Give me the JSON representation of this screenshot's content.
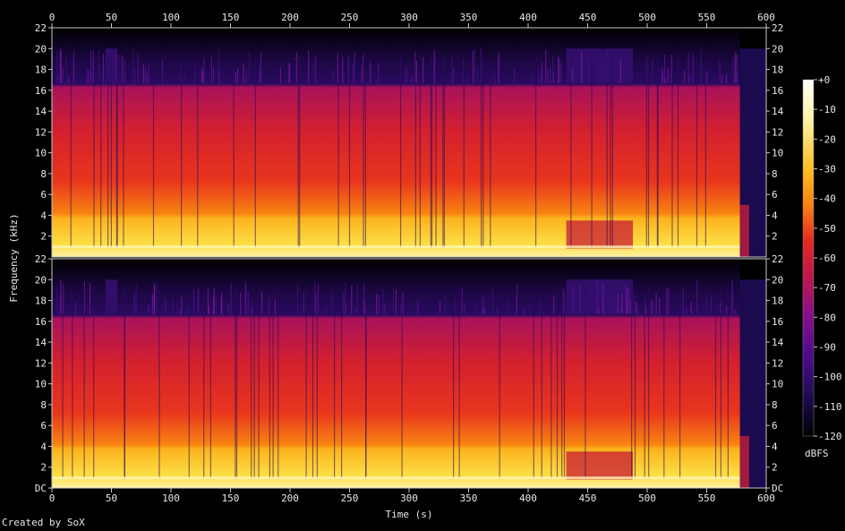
{
  "chart_data": {
    "type": "heatmap",
    "subtype": "spectrogram",
    "channels": 2,
    "xlabel": "Time (s)",
    "ylabel": "Frequency (kHz)",
    "xlim": [
      0,
      600
    ],
    "ylim": [
      0,
      22
    ],
    "x_ticks": [
      "0",
      "50",
      "100",
      "150",
      "200",
      "250",
      "300",
      "350",
      "400",
      "450",
      "500",
      "550",
      "600"
    ],
    "y_ticks": [
      "DC",
      "2",
      "4",
      "6",
      "8",
      "10",
      "12",
      "14",
      "16",
      "18",
      "20",
      "22"
    ],
    "colorbar": {
      "label": "dBFS",
      "range": [
        -120,
        0
      ],
      "ticks": [
        "+0",
        "-10",
        "-20",
        "-30",
        "-40",
        "-50",
        "-60",
        "-70",
        "-80",
        "-90",
        "-100",
        "-110",
        "-120"
      ]
    },
    "colors": [
      "#000000",
      "#1a0a4a",
      "#4b0a8c",
      "#7e0f9a",
      "#b0187a",
      "#d8203c",
      "#f14a14",
      "#fb8a0a",
      "#fdbf20",
      "#fee96a",
      "#ffffff"
    ],
    "features": {
      "lowpass_cutoff_khz": 16.7,
      "bursts_to_20khz_s": [
        [
          45,
          55
        ],
        [
          432,
          488
        ],
        [
          578,
          598
        ]
      ],
      "quiet_band_s": [
        432,
        488
      ],
      "fade_out_s": [
        578,
        600
      ]
    }
  },
  "footer": {
    "credit": "Created by SoX"
  }
}
